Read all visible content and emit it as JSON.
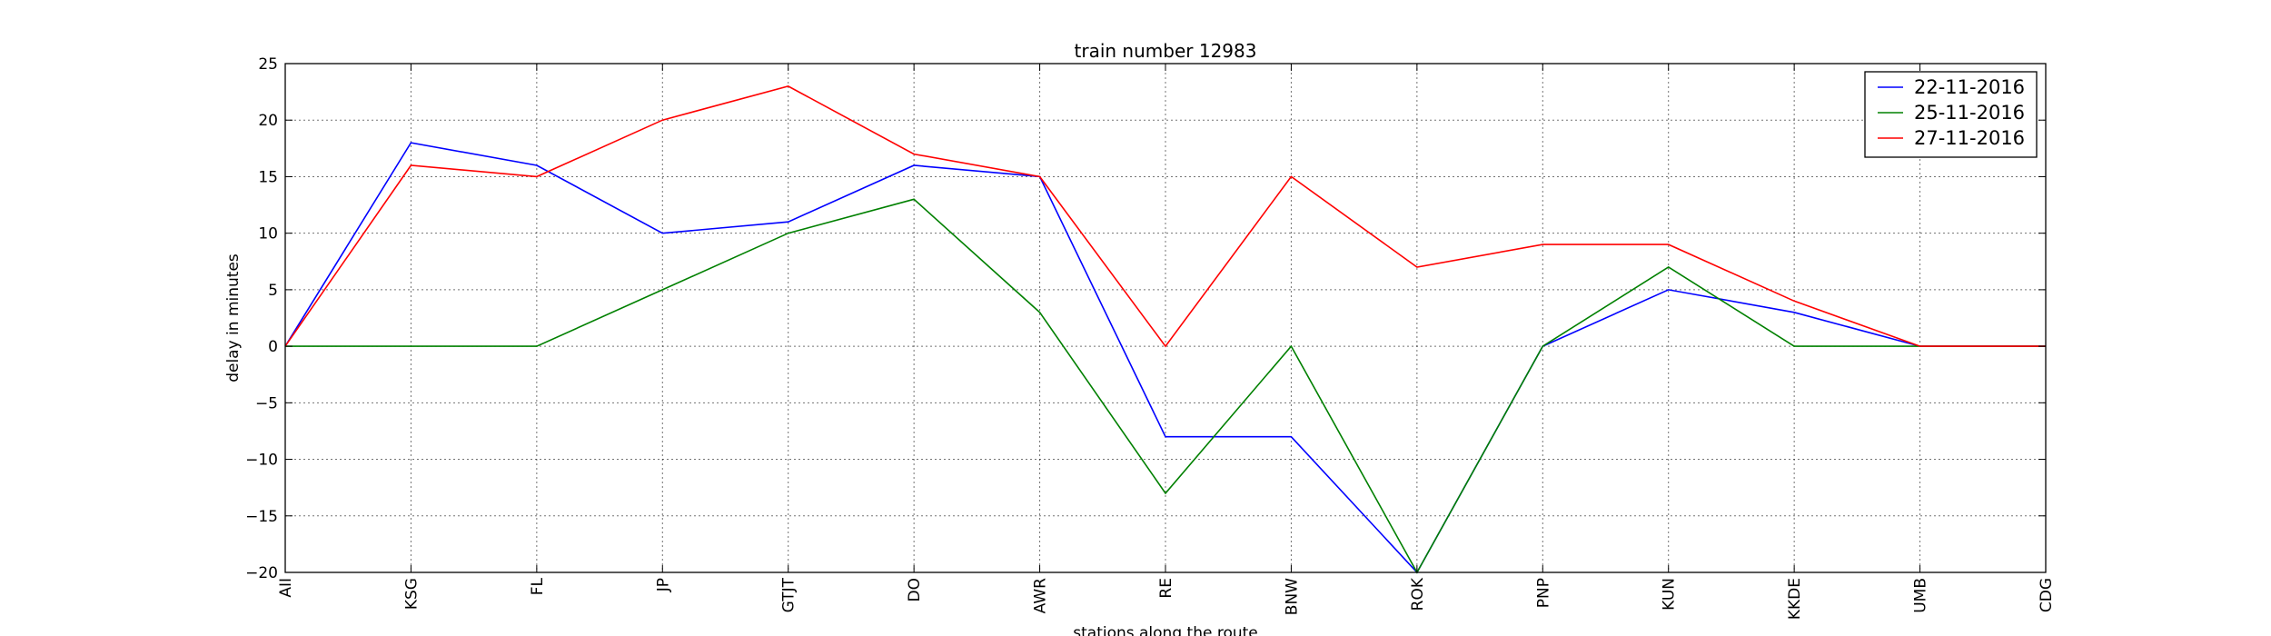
{
  "chart_data": {
    "type": "line",
    "title": "train number 12983",
    "xlabel": "stations along the route",
    "ylabel": "delay in minutes",
    "categories": [
      "AII",
      "KSG",
      "FL",
      "JP",
      "GTJT",
      "DO",
      "AWR",
      "RE",
      "BNW",
      "ROK",
      "PNP",
      "KUN",
      "KKDE",
      "UMB",
      "CDG"
    ],
    "ylim": [
      -20,
      25
    ],
    "yticks": [
      -20,
      -15,
      -10,
      -5,
      0,
      5,
      10,
      15,
      20,
      25
    ],
    "ytick_labels": [
      "−20",
      "−15",
      "−10",
      "−5",
      "0",
      "5",
      "10",
      "15",
      "20",
      "25"
    ],
    "grid": true,
    "legend_position": "top-right",
    "series": [
      {
        "name": "22-11-2016",
        "color": "#0000ff",
        "values": [
          0,
          18,
          16,
          10,
          11,
          16,
          15,
          -8,
          -8,
          -20,
          0,
          5,
          3,
          0,
          0
        ]
      },
      {
        "name": "25-11-2016",
        "color": "#008000",
        "values": [
          0,
          0,
          0,
          5,
          10,
          13,
          3,
          -13,
          0,
          -20,
          0,
          7,
          0,
          0,
          0
        ]
      },
      {
        "name": "27-11-2016",
        "color": "#ff0000",
        "values": [
          0,
          16,
          15,
          20,
          23,
          17,
          15,
          0,
          15,
          7,
          9,
          9,
          4,
          0,
          0
        ]
      }
    ]
  }
}
